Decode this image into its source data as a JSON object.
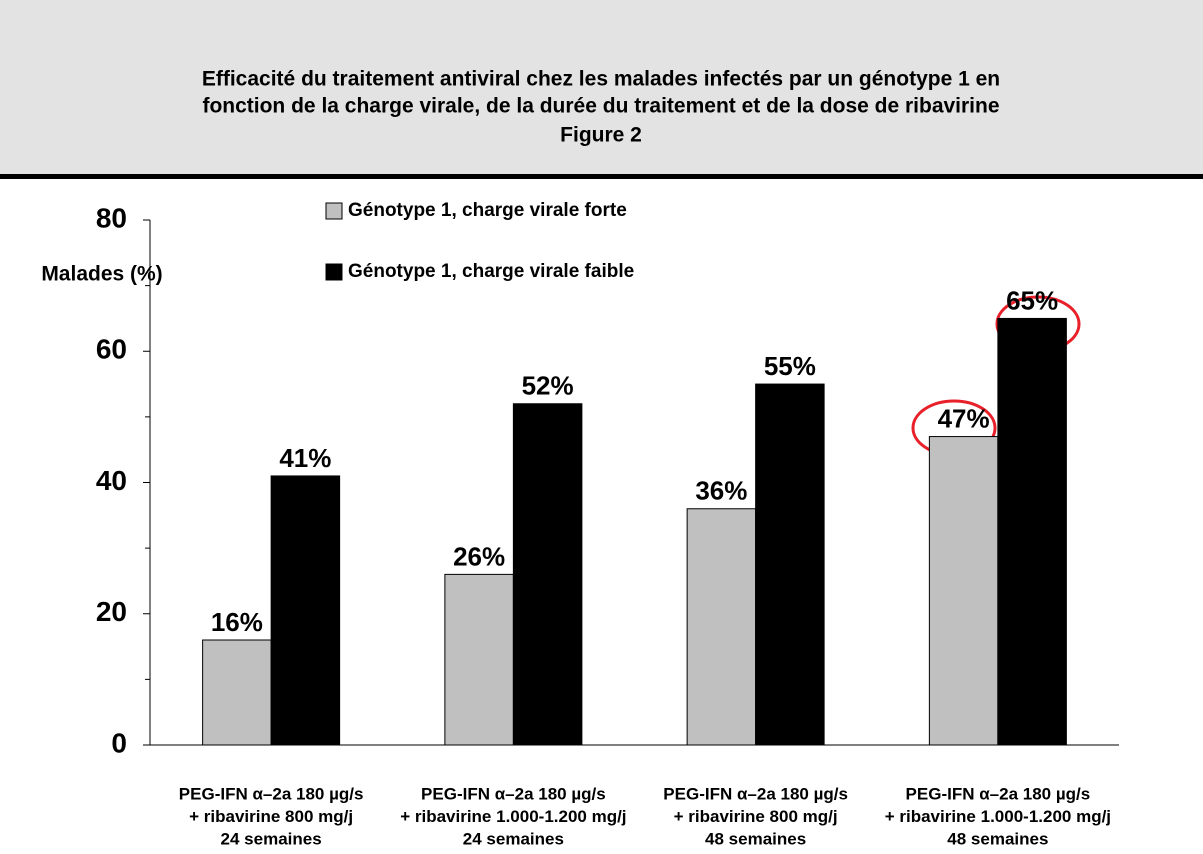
{
  "chart_data": {
    "type": "bar",
    "title": [
      "Efficacité du traitement antiviral chez les malades infectés par un génotype 1 en",
      "fonction de la charge virale, de la durée du traitement et de la dose de ribavirine",
      "Figure 2"
    ],
    "y_label": "Malades (%)",
    "categories": [
      [
        "PEG-IFN α–2a 180 µg/s",
        "+ ribavirine 800 mg/j",
        "24 semaines"
      ],
      [
        "PEG-IFN α–2a 180 µg/s",
        "+ ribavirine 1.000-1.200 mg/j",
        "24 semaines"
      ],
      [
        "PEG-IFN α–2a 180 µg/s",
        "+ ribavirine 800 mg/j",
        "48 semaines"
      ],
      [
        "PEG-IFN α–2a 180 µg/s",
        "+ ribavirine 1.000-1.200 mg/j",
        "48 semaines"
      ]
    ],
    "series": [
      {
        "name": "Génotype 1, charge virale forte",
        "color": "#c0c0c0",
        "values": [
          16,
          26,
          36,
          47
        ],
        "value_labels": [
          "16%",
          "26%",
          "36%",
          "47%"
        ]
      },
      {
        "name": "Génotype 1, charge virale faible",
        "color": "#000000",
        "values": [
          41,
          52,
          55,
          65
        ],
        "value_labels": [
          "41%",
          "52%",
          "55%",
          "65%"
        ]
      }
    ],
    "ylim": [
      0,
      80
    ],
    "yticks": [
      0,
      20,
      40,
      60,
      80
    ],
    "minor_yticks": [
      10,
      30,
      50,
      70
    ]
  }
}
